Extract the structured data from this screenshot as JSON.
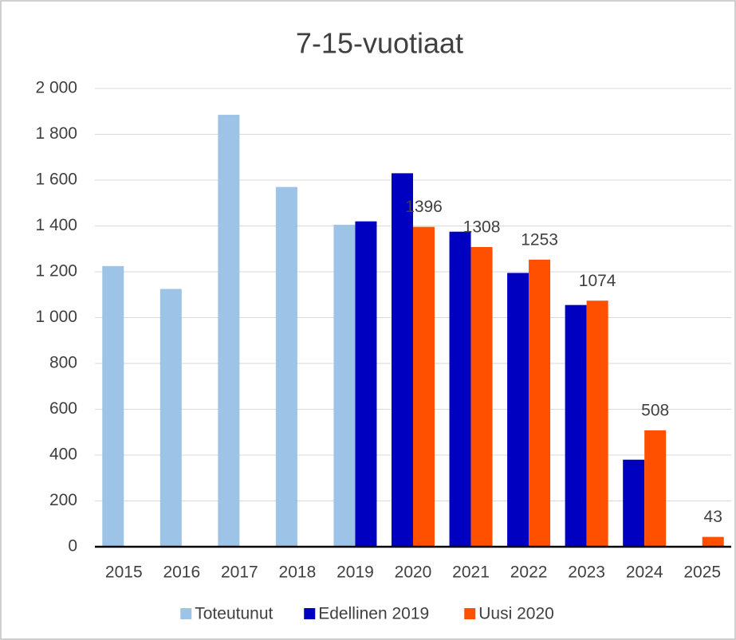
{
  "chart_data": {
    "type": "bar",
    "title": "7-15-vuotiaat",
    "categories": [
      "2015",
      "2016",
      "2017",
      "2018",
      "2019",
      "2020",
      "2021",
      "2022",
      "2023",
      "2024",
      "2025"
    ],
    "series": [
      {
        "name": "Toteutunut",
        "color": "#9dc3e6",
        "values": [
          1225,
          1125,
          1885,
          1570,
          1405,
          null,
          null,
          null,
          null,
          null,
          null
        ]
      },
      {
        "name": "Edellinen 2019",
        "color": "#0000c0",
        "values": [
          null,
          null,
          null,
          null,
          1420,
          1630,
          1375,
          1195,
          1055,
          380,
          null
        ]
      },
      {
        "name": "Uusi 2020",
        "color": "#ff5000",
        "values": [
          null,
          null,
          null,
          null,
          null,
          1396,
          1308,
          1253,
          1074,
          508,
          43
        ],
        "data_labels": true
      }
    ],
    "ylim": [
      0,
      2000
    ],
    "yticks": [
      0,
      200,
      400,
      600,
      800,
      {
        "value": 1000,
        "label": "1 000"
      },
      {
        "value": 1200,
        "label": "1 200"
      },
      {
        "value": 1400,
        "label": "1 400"
      },
      {
        "value": 1600,
        "label": "1 600"
      },
      {
        "value": 1800,
        "label": "1 800"
      },
      {
        "value": 2000,
        "label": "2 000"
      }
    ],
    "grid": true,
    "legend": "bottom"
  }
}
